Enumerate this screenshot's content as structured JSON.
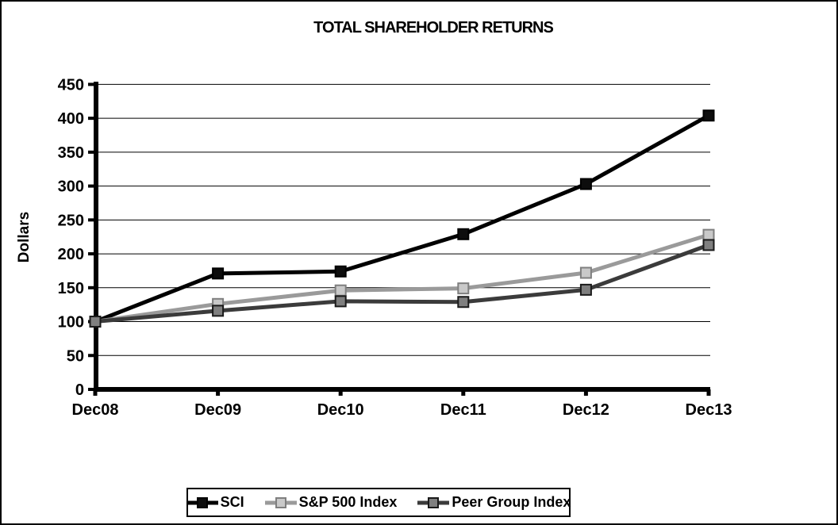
{
  "chart_data": {
    "type": "line",
    "title": "TOTAL SHAREHOLDER RETURNS",
    "ylabel": "Dollars",
    "xlabel": "",
    "categories": [
      "Dec08",
      "Dec09",
      "Dec10",
      "Dec11",
      "Dec12",
      "Dec13"
    ],
    "series": [
      {
        "name": "SCI",
        "values": [
          100,
          171,
          174,
          229,
          303,
          404
        ],
        "line_color": "#000000",
        "marker_fill": "#0d0d0d",
        "marker_stroke": "#000000"
      },
      {
        "name": "S&P 500 Index",
        "values": [
          100,
          126,
          146,
          149,
          172,
          228
        ],
        "line_color": "#9a9a9a",
        "marker_fill": "#c9c9c9",
        "marker_stroke": "#7f7f7f"
      },
      {
        "name": "Peer Group Index",
        "values": [
          100,
          116,
          130,
          129,
          147,
          213
        ],
        "line_color": "#3b3b3b",
        "marker_fill": "#7f7f7f",
        "marker_stroke": "#1a1a1a"
      }
    ],
    "y_axis": {
      "min": 0,
      "max": 450,
      "step": 50,
      "tick_labels": [
        "0",
        "50",
        "100",
        "150",
        "200",
        "250",
        "300",
        "350",
        "400",
        "450"
      ]
    },
    "grid": true,
    "gridline_color": "#000000",
    "axis_color": "#000000",
    "background_color": "#ffffff",
    "border_color": "#000000",
    "legend_position": "bottom",
    "legend_labels": [
      "SCI",
      "S&P 500 Index",
      "Peer Group Index"
    ]
  }
}
